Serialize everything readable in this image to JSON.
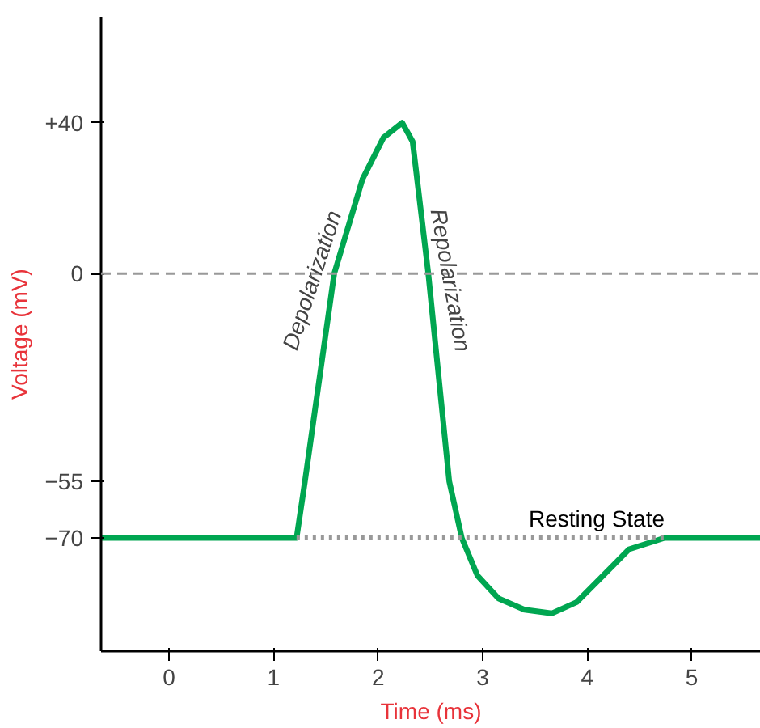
{
  "chart_data": {
    "type": "line",
    "xlabel": "Time (ms)",
    "ylabel": "Voltage (mV)",
    "xlim": [
      -0.65,
      5.66
    ],
    "ylim": [
      -100,
      68
    ],
    "xticks": [
      0,
      1,
      2,
      3,
      4,
      5
    ],
    "yticks": [
      {
        "value": 40,
        "label": "+40"
      },
      0,
      -55,
      -70
    ],
    "grid": false,
    "marker": "none",
    "series": [
      {
        "color": "#00a651",
        "x": [
          -0.65,
          1.22,
          1.3,
          1.58,
          1.85,
          2.05,
          2.23,
          2.33,
          2.48,
          2.68,
          2.8,
          2.95,
          3.15,
          3.4,
          3.66,
          3.9,
          4.15,
          4.4,
          4.74,
          5.66
        ],
        "values": [
          -70,
          -70,
          -55,
          0,
          25,
          36,
          40,
          35,
          0,
          -55,
          -70,
          -80,
          -86,
          -89,
          -90,
          -87,
          -80,
          -73,
          -70,
          -70
        ],
        "line_style": "solid"
      },
      {
        "name": "Resting State",
        "color": "#999999",
        "x": [
          1.22,
          4.74
        ],
        "values": [
          -70,
          -70
        ],
        "line_style": "dotted"
      }
    ],
    "ref_lines": [
      {
        "axis": "y",
        "value": 0,
        "color": "#999999",
        "line_style": "dashed"
      }
    ],
    "annotations": [
      {
        "text": "Depolarization",
        "x": 1.58,
        "y": 0
      },
      {
        "text": "Repolarization",
        "x": 2.48,
        "y": 0
      }
    ]
  }
}
